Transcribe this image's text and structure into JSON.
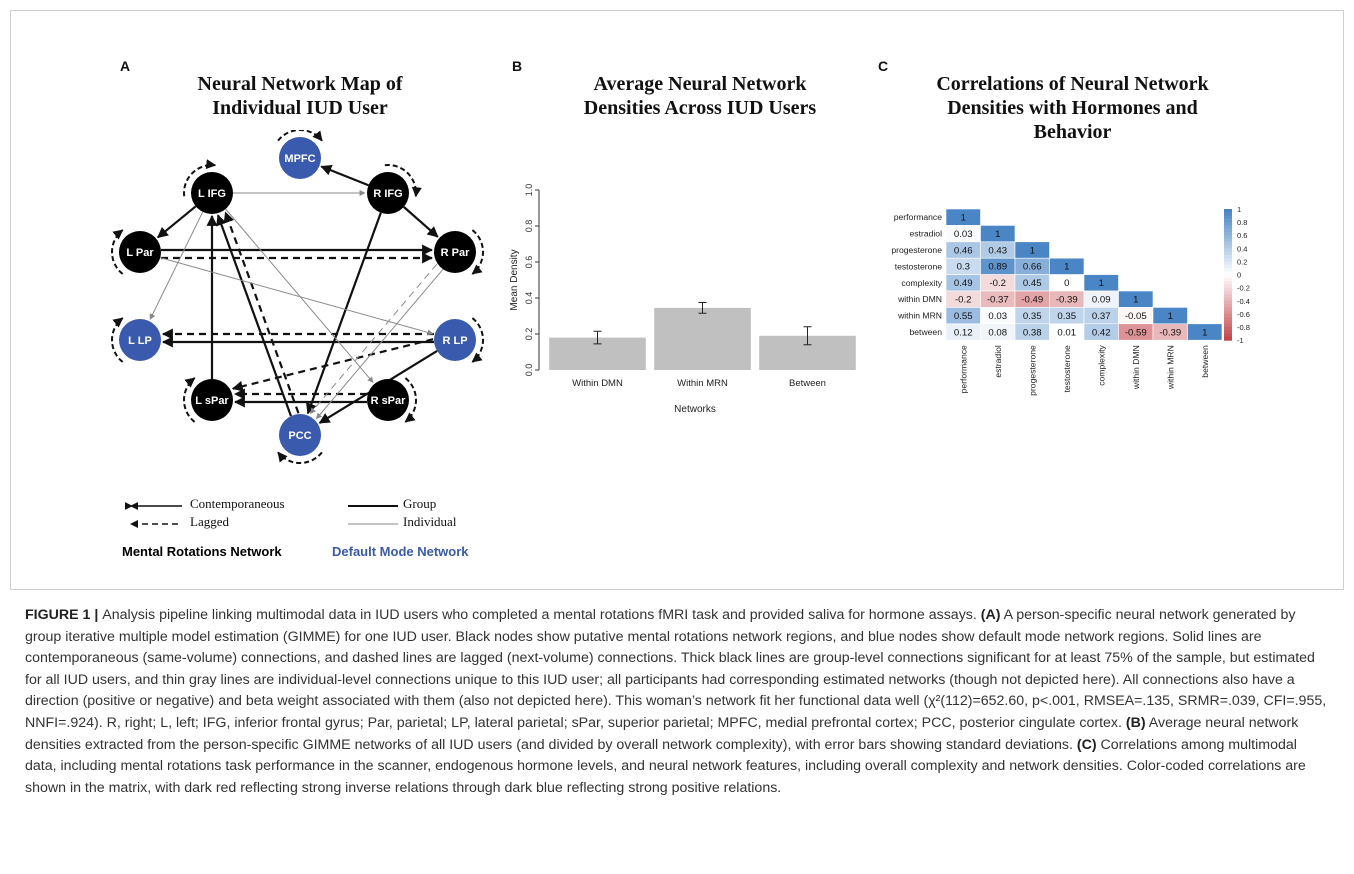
{
  "panels": {
    "a": {
      "letter": "A",
      "title_line1": "Neural Network Map of",
      "title_line2": "Individual IUD User"
    },
    "b": {
      "letter": "B",
      "title_line1": "Average Neural Network",
      "title_line2": "Densities Across IUD Users"
    },
    "c": {
      "letter": "C",
      "title_line1": "Correlations of Neural Network",
      "title_line2": "Densities with Hormones and",
      "title_line3": "Behavior"
    }
  },
  "network": {
    "nodes": [
      {
        "id": "MPFC",
        "label": "MPFC",
        "group": "dmn"
      },
      {
        "id": "LIFG",
        "label": "L IFG",
        "group": "mrn"
      },
      {
        "id": "RIFG",
        "label": "R IFG",
        "group": "mrn"
      },
      {
        "id": "LPar",
        "label": "L Par",
        "group": "mrn"
      },
      {
        "id": "RPar",
        "label": "R Par",
        "group": "mrn"
      },
      {
        "id": "LLP",
        "label": "L LP",
        "group": "dmn"
      },
      {
        "id": "RLP",
        "label": "R LP",
        "group": "dmn"
      },
      {
        "id": "LsPar",
        "label": "L sPar",
        "group": "mrn"
      },
      {
        "id": "RsPar",
        "label": "R sPar",
        "group": "mrn"
      },
      {
        "id": "PCC",
        "label": "PCC",
        "group": "dmn"
      }
    ],
    "colors": {
      "mrn": "#000000",
      "dmn": "#3a5aad"
    },
    "legend": {
      "contemporaneous": "Contemporaneous",
      "lagged": "Lagged",
      "group": "Group",
      "individual": "Individual",
      "mrn_label": "Mental Rotations Network",
      "dmn_label": "Default Mode Network"
    }
  },
  "chart_data": [
    {
      "type": "bar",
      "categories": [
        "Within DMN",
        "Within MRN",
        "Between"
      ],
      "values": [
        0.18,
        0.345,
        0.19
      ],
      "errors": [
        0.035,
        0.03,
        0.05
      ],
      "xlabel": "Networks",
      "ylabel": "Mean Density",
      "ylim": [
        0,
        1.0
      ],
      "yticks": [
        "0.0",
        "0.2",
        "0.4",
        "0.6",
        "0.8",
        "1.0"
      ],
      "bar_color": "#c0c0c0"
    },
    {
      "type": "heatmap",
      "variables": [
        "performance",
        "estradiol",
        "progesterone",
        "testosterone",
        "complexity",
        "within DMN",
        "within MRN",
        "between"
      ],
      "matrix_lower": [
        [
          "1"
        ],
        [
          "0.03",
          "1"
        ],
        [
          "0.46",
          "0.43",
          "1"
        ],
        [
          "0.3",
          "0.89",
          "0.66",
          "1"
        ],
        [
          "0.49",
          "-0.2",
          "0.45",
          "0",
          "1"
        ],
        [
          "-0.2",
          "-0.37",
          "-0.49",
          "-0.39",
          "0.09",
          "1"
        ],
        [
          "0.55",
          "0.03",
          "0.35",
          "0.35",
          "0.37",
          "-0.05",
          "1"
        ],
        [
          "0.12",
          "0.08",
          "0.38",
          "0.01",
          "0.42",
          "-0.59",
          "-0.39",
          "1"
        ]
      ],
      "colorbar_ticks": [
        "1",
        "0.8",
        "0.6",
        "0.4",
        "0.2",
        "0",
        "-0.2",
        "-0.4",
        "-0.6",
        "-0.8",
        "-1"
      ],
      "colors": {
        "positive": "#4a86c6",
        "negative": "#c5464d"
      }
    }
  ],
  "caption": {
    "lead": "FIGURE 1 | ",
    "p1": "Analysis pipeline linking multimodal data in IUD users who completed a mental rotations fMRI task and provided saliva for hormone assays. ",
    "a_tag": "(A)",
    "p2": " A person-specific neural network generated by group iterative multiple model estimation (GIMME) for one IUD user. Black nodes show putative mental rotations network regions, and blue nodes show default mode network regions. Solid lines are contemporaneous (same-volume) connections, and dashed lines are lagged (next-volume) connections. Thick black lines are group-level connections significant for at least 75% of the sample, but estimated for all IUD users, and thin gray lines are individual-level connections unique to this IUD user; all participants had corresponding estimated networks (though not depicted here). All connections also have a direction (positive or negative) and beta weight associated with them (also not depicted here). This woman’s network fit her functional data well (χ²(112)=652.60, p<.001, RMSEA=.135, SRMR=.039, CFI=.955, NNFI=.924). R, right; L, left; IFG, inferior frontal gyrus; Par, parietal; LP, lateral parietal; sPar, superior parietal; MPFC, medial prefrontal cortex; PCC, posterior cingulate cortex. ",
    "b_tag": "(B)",
    "p3": " Average neural network densities extracted from the person-specific GIMME networks of all IUD users (and divided by overall network complexity), with error bars showing standard deviations. ",
    "c_tag": "(C)",
    "p4": " Correlations among multimodal data, including mental rotations task performance in the scanner, endogenous hormone levels, and neural network features, including overall complexity and network densities. Color-coded correlations are shown in the matrix, with dark red reflecting strong inverse relations through dark blue reflecting strong positive relations."
  }
}
